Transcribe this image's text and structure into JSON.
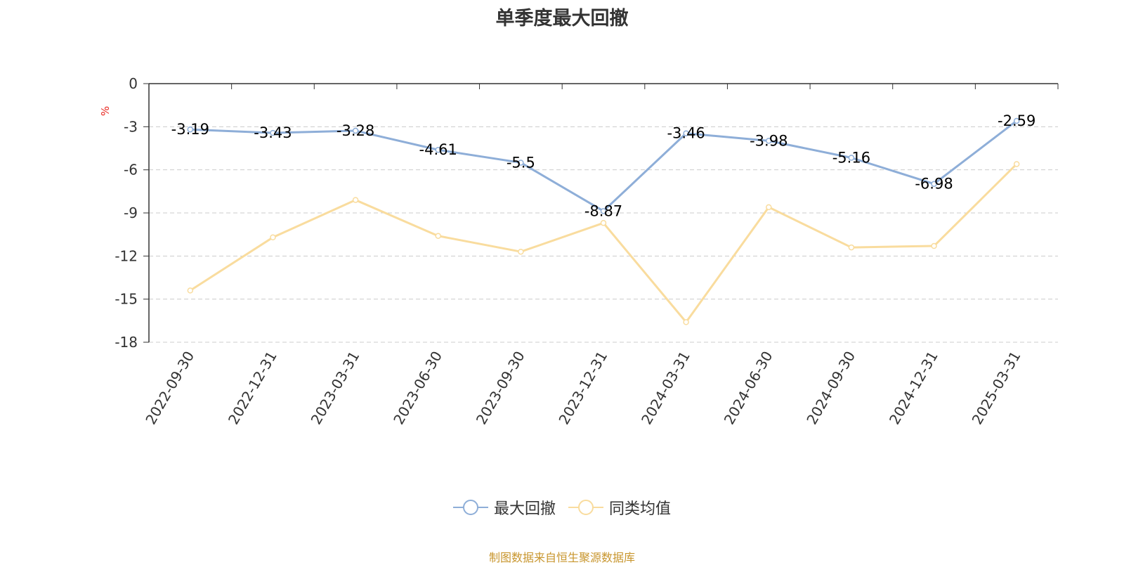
{
  "chart_data": {
    "type": "line",
    "title": "单季度最大回撤",
    "ylabel": "%",
    "ylim": [
      -18,
      0
    ],
    "yticks": [
      0,
      -3,
      -6,
      -9,
      -12,
      -15,
      -18
    ],
    "categories": [
      "2022-09-30",
      "2022-12-31",
      "2023-03-31",
      "2023-06-30",
      "2023-09-30",
      "2023-12-31",
      "2024-03-31",
      "2024-06-30",
      "2024-09-30",
      "2024-12-31",
      "2025-03-31"
    ],
    "grid": true,
    "legend_position": "bottom",
    "series": [
      {
        "name": "最大回撤",
        "color": "#8eaed8",
        "labels": true,
        "values": [
          -3.19,
          -3.43,
          -3.28,
          -4.61,
          -5.5,
          -8.87,
          -3.46,
          -3.98,
          -5.16,
          -6.98,
          -2.59
        ]
      },
      {
        "name": "同类均值",
        "color": "#f9dc9e",
        "labels": false,
        "values": [
          -14.4,
          -10.7,
          -8.1,
          -10.6,
          -11.7,
          -9.7,
          -16.6,
          -8.6,
          -11.4,
          -11.3,
          -5.6
        ]
      }
    ]
  },
  "source_note": "制图数据来自恒生聚源数据库"
}
